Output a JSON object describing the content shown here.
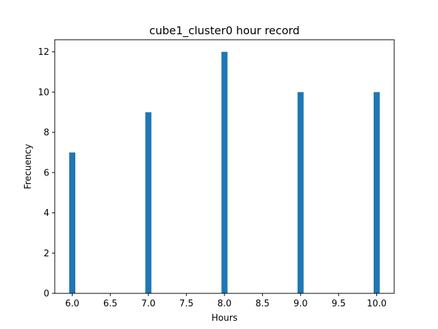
{
  "chart_data": {
    "type": "bar",
    "title": "cube1_cluster0 hour record",
    "xlabel": "Hours",
    "ylabel": "Frecuency",
    "x": [
      6,
      7,
      8,
      9,
      10
    ],
    "values": [
      7,
      9,
      12,
      10,
      10
    ],
    "bar_width": 0.08,
    "xlim": [
      5.77,
      10.23
    ],
    "ylim": [
      0,
      12.6
    ],
    "xticks": [
      6.0,
      6.5,
      7.0,
      7.5,
      8.0,
      8.5,
      9.0,
      9.5,
      10.0
    ],
    "xtick_labels": [
      "6.0",
      "6.5",
      "7.0",
      "7.5",
      "8.0",
      "8.5",
      "9.0",
      "9.5",
      "10.0"
    ],
    "yticks": [
      0,
      2,
      4,
      6,
      8,
      10,
      12
    ],
    "ytick_labels": [
      "0",
      "2",
      "4",
      "6",
      "8",
      "10",
      "12"
    ],
    "bar_color": "#1f77b4",
    "grid": false
  }
}
